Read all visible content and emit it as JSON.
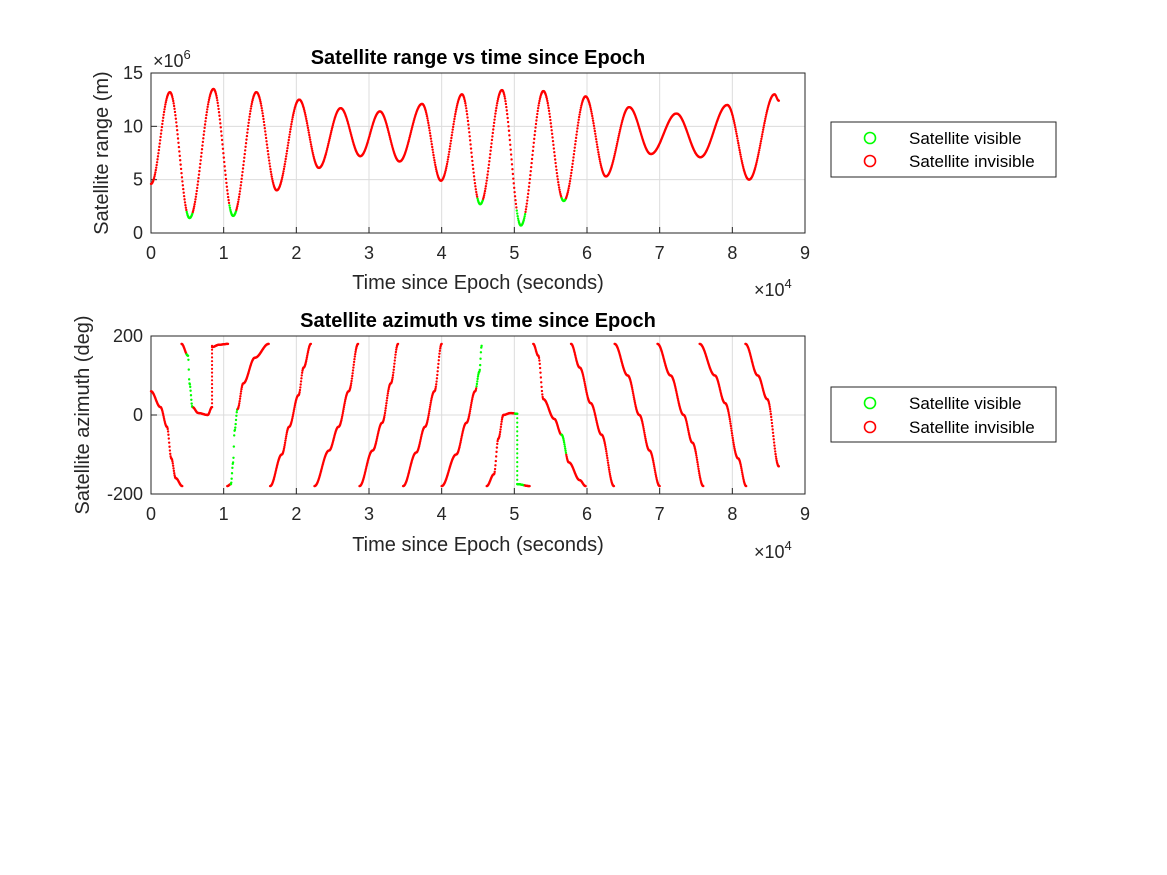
{
  "colors": {
    "visible": "#00ff00",
    "invisible": "#ff0000"
  },
  "chart_data": [
    {
      "type": "scatter",
      "title": "Satellite range vs time since Epoch",
      "xlabel": "Time since Epoch (seconds)",
      "ylabel": "Satellite range (m)",
      "xlim": [
        0,
        90000
      ],
      "ylim": [
        0,
        15000000
      ],
      "x_ticks": [
        0,
        1,
        2,
        3,
        4,
        5,
        6,
        7,
        8,
        9
      ],
      "y_ticks": [
        0,
        5,
        10,
        15
      ],
      "x_exponent_label": "×10",
      "x_exponent": "4",
      "y_exponent_label": "×10",
      "y_exponent": "6",
      "grid": true,
      "legend_placement": "outside-right",
      "legend": [
        "Satellite visible",
        "Satellite invisible"
      ],
      "t_end": 86400,
      "range_curve": [
        [
          0,
          4.6
        ],
        [
          2600,
          13.2
        ],
        [
          5300,
          1.4
        ],
        [
          8600,
          13.5
        ],
        [
          11300,
          1.6
        ],
        [
          14500,
          13.2
        ],
        [
          17300,
          4.0
        ],
        [
          20400,
          12.5
        ],
        [
          23100,
          6.1
        ],
        [
          26100,
          11.7
        ],
        [
          28800,
          7.2
        ],
        [
          31500,
          11.4
        ],
        [
          34200,
          6.7
        ],
        [
          37300,
          12.1
        ],
        [
          39900,
          4.9
        ],
        [
          42800,
          13.0
        ],
        [
          45300,
          2.7
        ],
        [
          48300,
          13.4
        ],
        [
          50900,
          0.7
        ],
        [
          54000,
          13.3
        ],
        [
          56800,
          3.0
        ],
        [
          59800,
          12.8
        ],
        [
          62600,
          5.3
        ],
        [
          65800,
          11.8
        ],
        [
          68800,
          7.4
        ],
        [
          72300,
          11.2
        ],
        [
          75600,
          7.1
        ],
        [
          79300,
          12.0
        ],
        [
          82300,
          5.0
        ],
        [
          85800,
          13.0
        ],
        [
          86400,
          12.4
        ]
      ],
      "range_visible_intervals": [
        [
          4900,
          5700
        ],
        [
          10800,
          11700
        ],
        [
          44900,
          45700
        ],
        [
          50300,
          51500
        ],
        [
          56500,
          57100
        ]
      ]
    },
    {
      "type": "scatter",
      "title": "Satellite azimuth vs time since Epoch",
      "xlabel": "Time since Epoch (seconds)",
      "ylabel": "Satellite azimuth (deg)",
      "xlim": [
        0,
        90000
      ],
      "ylim": [
        -200,
        200
      ],
      "x_ticks": [
        0,
        1,
        2,
        3,
        4,
        5,
        6,
        7,
        8,
        9
      ],
      "y_ticks": [
        -200,
        0,
        200
      ],
      "x_exponent_label": "×10",
      "x_exponent": "4",
      "grid": true,
      "legend_placement": "outside-right",
      "legend": [
        "Satellite visible",
        "Satellite invisible"
      ],
      "azimuth_segments": [
        {
          "points": [
            [
              0,
              60
            ],
            [
              1300,
              20
            ],
            [
              2200,
              -30
            ],
            [
              2800,
              -110
            ],
            [
              3400,
              -160
            ],
            [
              4300,
              -180
            ]
          ]
        },
        {
          "points": [
            [
              4200,
              180
            ],
            [
              5100,
              150
            ],
            [
              5300,
              80
            ],
            [
              5700,
              20
            ],
            [
              6500,
              5
            ],
            [
              7800,
              0
            ],
            [
              8400,
              20
            ]
          ]
        },
        {
          "points": [
            [
              8400,
              20
            ],
            [
              8400,
              175
            ]
          ],
          "sparse": true
        },
        {
          "points": [
            [
              8400,
              172
            ],
            [
              9400,
              178
            ],
            [
              10600,
              180
            ]
          ]
        },
        {
          "points": [
            [
              10500,
              -180
            ],
            [
              11000,
              -175
            ],
            [
              11300,
              -120
            ],
            [
              11500,
              -40
            ],
            [
              11900,
              15
            ],
            [
              12700,
              80
            ],
            [
              14300,
              145
            ],
            [
              16200,
              180
            ]
          ]
        },
        {
          "points": [
            [
              16400,
              -180
            ],
            [
              18000,
              -100
            ],
            [
              19000,
              -30
            ],
            [
              20300,
              50
            ],
            [
              21000,
              120
            ],
            [
              22000,
              180
            ]
          ]
        },
        {
          "points": [
            [
              22500,
              -180
            ],
            [
              24500,
              -90
            ],
            [
              25800,
              -30
            ],
            [
              27200,
              60
            ],
            [
              28500,
              180
            ]
          ]
        },
        {
          "points": [
            [
              28700,
              -180
            ],
            [
              30500,
              -90
            ],
            [
              31800,
              -20
            ],
            [
              33000,
              80
            ],
            [
              34000,
              180
            ]
          ]
        },
        {
          "points": [
            [
              34700,
              -180
            ],
            [
              36500,
              -95
            ],
            [
              37700,
              -30
            ],
            [
              39000,
              60
            ],
            [
              40000,
              180
            ]
          ]
        },
        {
          "points": [
            [
              40000,
              -180
            ],
            [
              42000,
              -100
            ],
            [
              43400,
              -20
            ],
            [
              44600,
              60
            ],
            [
              45200,
              110
            ],
            [
              45500,
              175
            ]
          ]
        },
        {
          "points": [
            [
              46200,
              -180
            ],
            [
              47200,
              -150
            ],
            [
              47800,
              -60
            ],
            [
              48500,
              0
            ],
            [
              49500,
              5
            ],
            [
              50400,
              3
            ]
          ]
        },
        {
          "points": [
            [
              50400,
              3
            ],
            [
              50400,
              -175
            ]
          ],
          "sparse": true
        },
        {
          "points": [
            [
              50400,
              -175
            ],
            [
              52100,
              -180
            ]
          ]
        },
        {
          "points": [
            [
              52600,
              180
            ],
            [
              53300,
              150
            ],
            [
              54000,
              40
            ],
            [
              55500,
              -10
            ],
            [
              56500,
              -50
            ],
            [
              57500,
              -120
            ],
            [
              59000,
              -165
            ],
            [
              59800,
              -180
            ]
          ]
        },
        {
          "points": [
            [
              57800,
              180
            ],
            [
              59000,
              120
            ],
            [
              60500,
              30
            ],
            [
              62000,
              -50
            ],
            [
              63700,
              -180
            ]
          ]
        },
        {
          "points": [
            [
              63800,
              180
            ],
            [
              65600,
              100
            ],
            [
              67200,
              0
            ],
            [
              68600,
              -90
            ],
            [
              70000,
              -180
            ]
          ]
        },
        {
          "points": [
            [
              69700,
              180
            ],
            [
              71500,
              100
            ],
            [
              73300,
              0
            ],
            [
              74500,
              -70
            ],
            [
              76000,
              -180
            ]
          ]
        },
        {
          "points": [
            [
              75500,
              180
            ],
            [
              77600,
              100
            ],
            [
              79000,
              30
            ],
            [
              80800,
              -110
            ],
            [
              81900,
              -180
            ]
          ]
        },
        {
          "points": [
            [
              81800,
              180
            ],
            [
              83500,
              100
            ],
            [
              84800,
              40
            ],
            [
              86400,
              -130
            ]
          ]
        }
      ],
      "azimuth_visible_intervals": [
        [
          4900,
          5800
        ],
        [
          11000,
          11900
        ],
        [
          44800,
          45600
        ],
        [
          50100,
          51400
        ],
        [
          56500,
          57100
        ]
      ]
    }
  ]
}
